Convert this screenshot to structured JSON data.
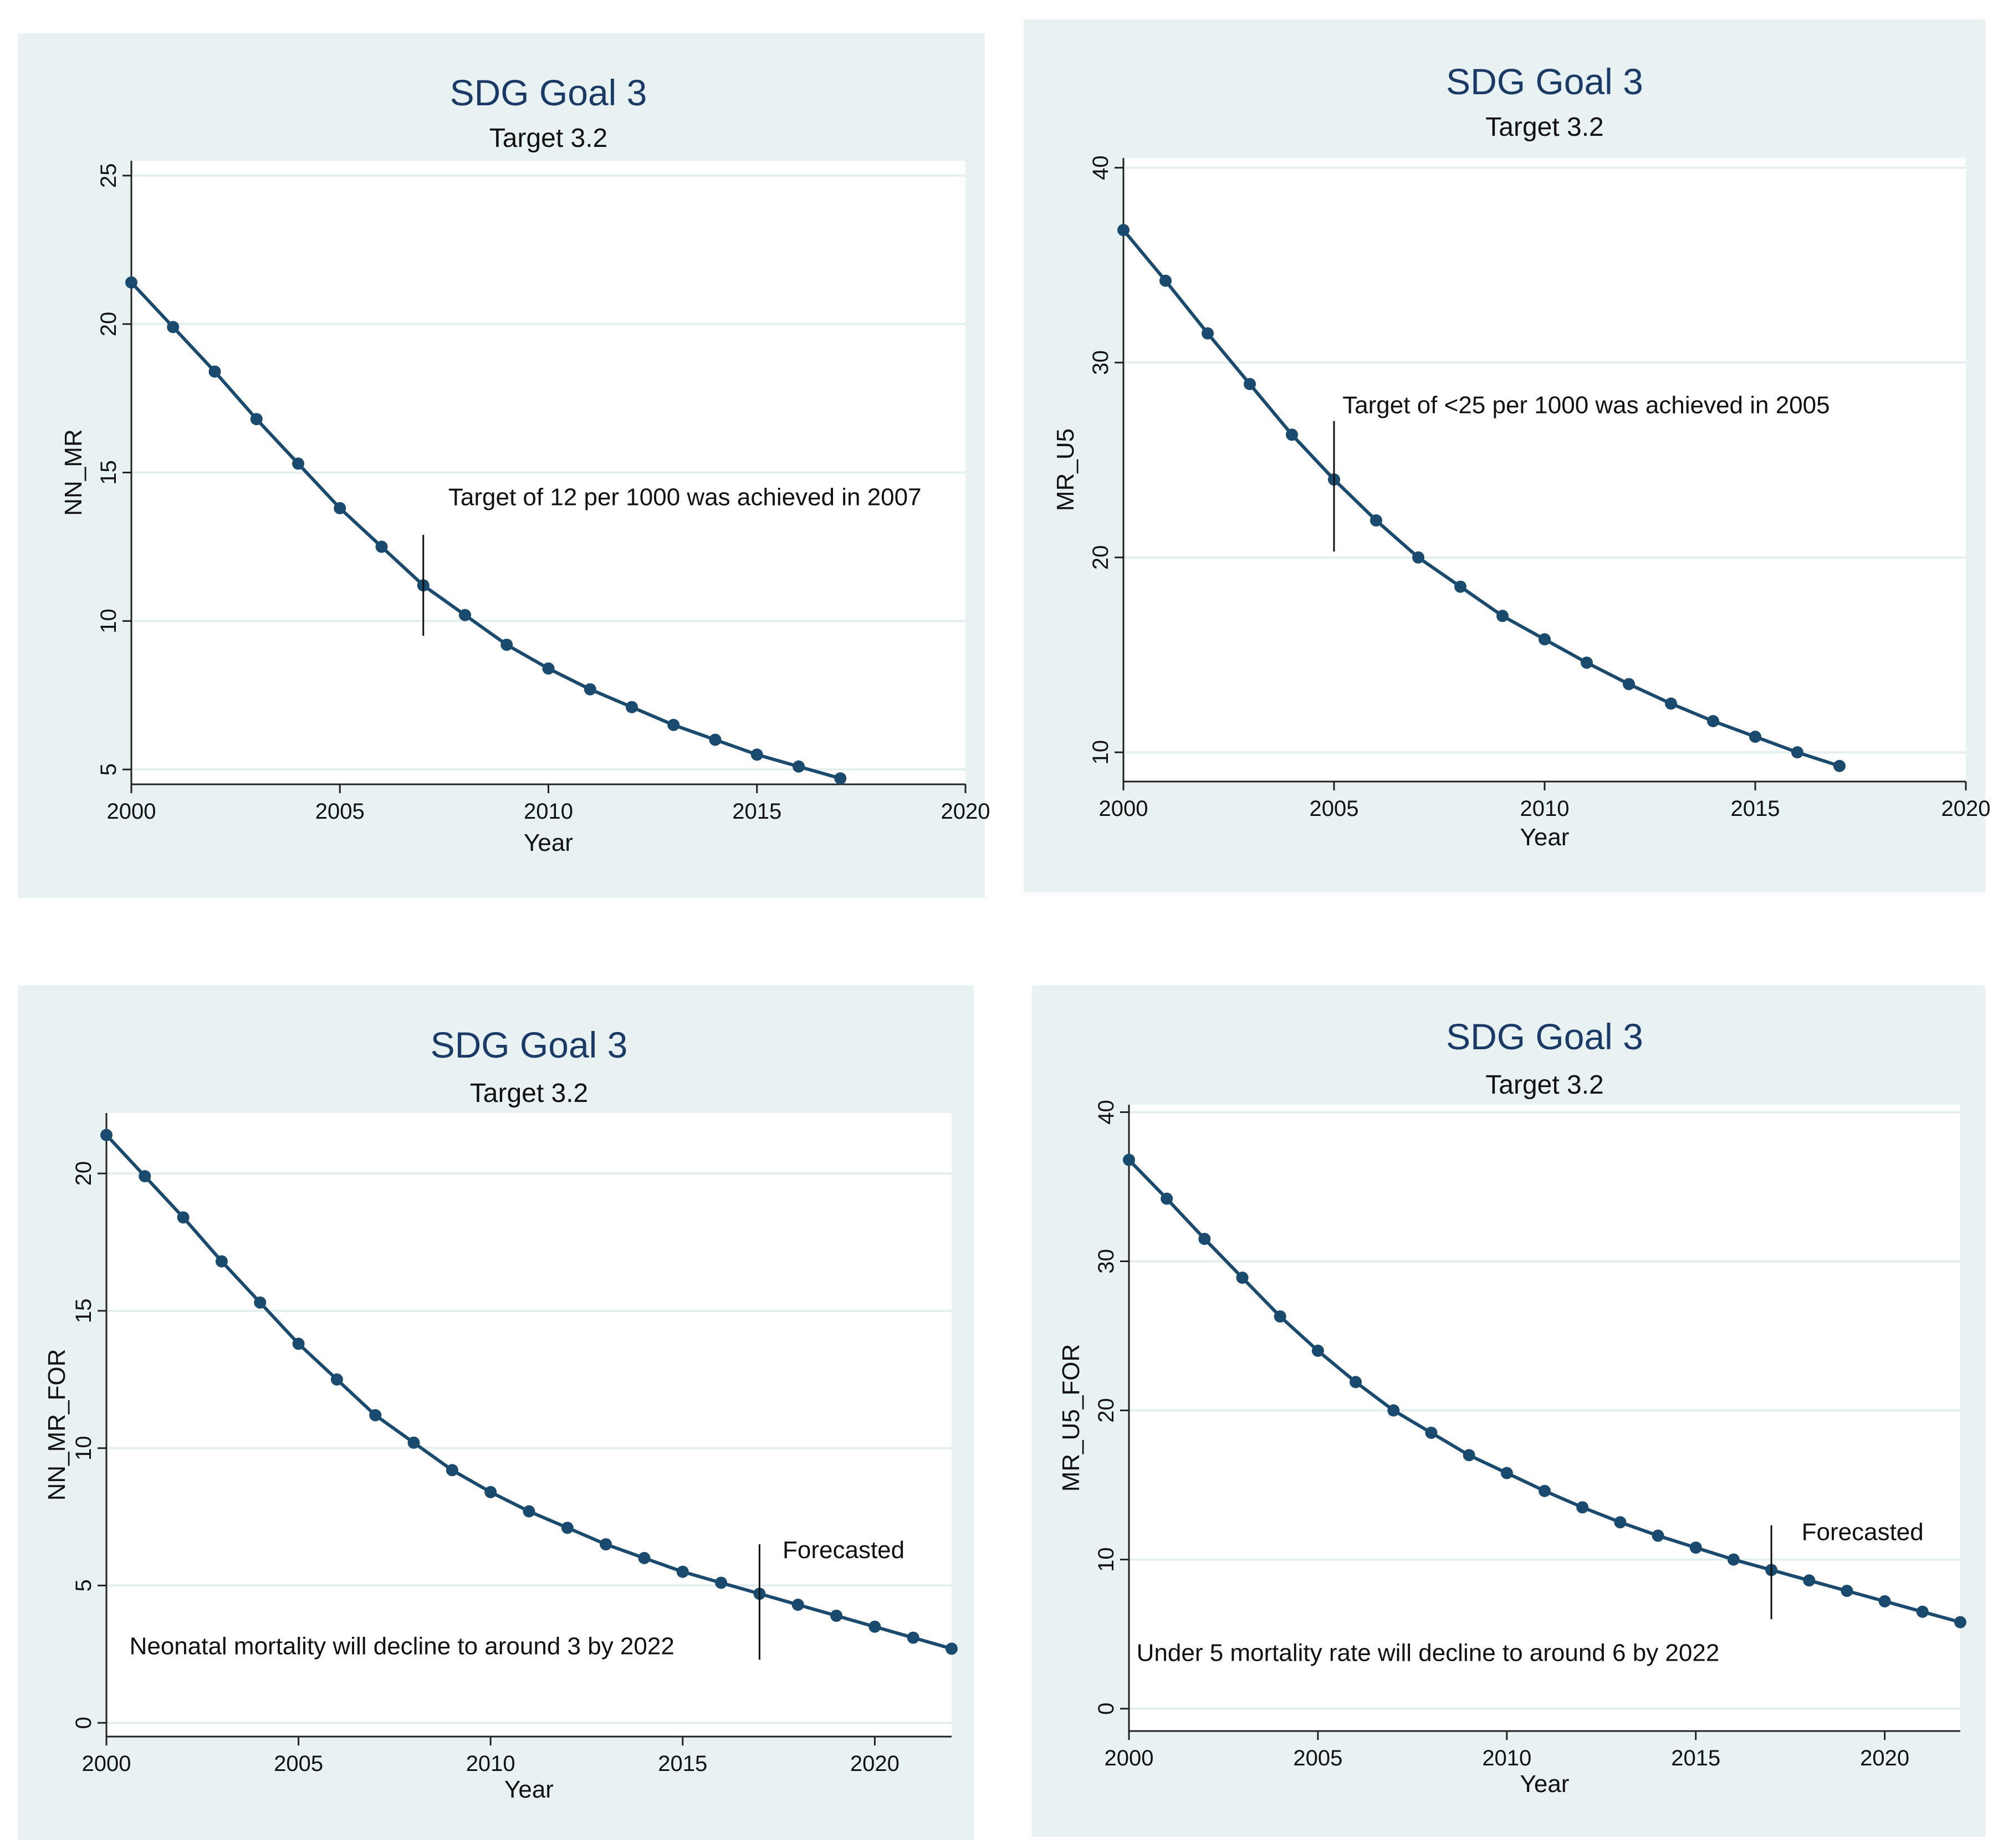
{
  "chart_data": [
    {
      "type": "line",
      "title": "SDG Goal 3",
      "subtitle": "Target 3.2",
      "xlabel": "Year",
      "ylabel": "NN_MR",
      "xlim": [
        2000,
        2020
      ],
      "ylim": [
        4.5,
        25.5
      ],
      "xticks": [
        2000,
        2005,
        2010,
        2015,
        2020
      ],
      "yticks": [
        5,
        10,
        15,
        20,
        25
      ],
      "grid": true,
      "x": [
        2000,
        2001,
        2002,
        2003,
        2004,
        2005,
        2006,
        2007,
        2008,
        2009,
        2010,
        2011,
        2012,
        2013,
        2014,
        2015,
        2016,
        2017
      ],
      "series": [
        {
          "values": [
            21.4,
            19.9,
            18.4,
            16.8,
            15.3,
            13.8,
            12.5,
            11.2,
            10.2,
            9.2,
            8.4,
            7.7,
            7.1,
            6.5,
            6.0,
            5.5,
            5.1,
            4.7
          ]
        }
      ],
      "vline": {
        "x": 2007,
        "y1": 9.5,
        "y2": 12.9
      },
      "annotation": {
        "text": "Target of 12 per 1000 was achieved in 2007",
        "x": 2007.6,
        "y": 13.9
      }
    },
    {
      "type": "line",
      "title": "SDG Goal 3",
      "subtitle": "Target 3.2",
      "xlabel": "Year",
      "ylabel": "MR_U5",
      "xlim": [
        2000,
        2020
      ],
      "ylim": [
        8.5,
        40.5
      ],
      "xticks": [
        2000,
        2005,
        2010,
        2015,
        2020
      ],
      "yticks": [
        10,
        20,
        30,
        40
      ],
      "grid": true,
      "x": [
        2000,
        2001,
        2002,
        2003,
        2004,
        2005,
        2006,
        2007,
        2008,
        2009,
        2010,
        2011,
        2012,
        2013,
        2014,
        2015,
        2016,
        2017
      ],
      "series": [
        {
          "values": [
            36.8,
            34.2,
            31.5,
            28.9,
            26.3,
            24.0,
            21.9,
            20.0,
            18.5,
            17.0,
            15.8,
            14.6,
            13.5,
            12.5,
            11.6,
            10.8,
            10.0,
            9.3
          ]
        }
      ],
      "vline": {
        "x": 2005,
        "y1": 20.3,
        "y2": 27.0
      },
      "annotation": {
        "text": "Target of <25 per 1000 was achieved in 2005",
        "x": 2005.2,
        "y": 27.4
      }
    },
    {
      "type": "line",
      "title": "SDG Goal 3",
      "subtitle": "Target 3.2",
      "xlabel": "Year",
      "ylabel": "NN_MR_FOR",
      "xlim": [
        2000,
        2022
      ],
      "ylim": [
        -0.5,
        22.2
      ],
      "xticks": [
        2000,
        2005,
        2010,
        2015,
        2020
      ],
      "yticks": [
        0,
        5,
        10,
        15,
        20
      ],
      "grid": true,
      "x": [
        2000,
        2001,
        2002,
        2003,
        2004,
        2005,
        2006,
        2007,
        2008,
        2009,
        2010,
        2011,
        2012,
        2013,
        2014,
        2015,
        2016,
        2017,
        2018,
        2019,
        2020,
        2021,
        2022
      ],
      "series": [
        {
          "values": [
            21.4,
            19.9,
            18.4,
            16.8,
            15.3,
            13.8,
            12.5,
            11.2,
            10.2,
            9.2,
            8.4,
            7.7,
            7.1,
            6.5,
            6.0,
            5.5,
            5.1,
            4.7,
            4.3,
            3.9,
            3.5,
            3.1,
            2.7
          ]
        }
      ],
      "vline": {
        "x": 2017,
        "y1": 2.3,
        "y2": 6.5
      },
      "annotations": [
        {
          "text": "Forecasted",
          "x": 2017.6,
          "y": 6.0
        },
        {
          "text": "Neonatal mortality will decline to around 3 by 2022",
          "x": 2000.6,
          "y": 2.5
        }
      ]
    },
    {
      "type": "line",
      "title": "SDG Goal 3",
      "subtitle": "Target 3.2",
      "xlabel": "Year",
      "ylabel": "MR_U5_FOR",
      "xlim": [
        2000,
        2022
      ],
      "ylim": [
        -1.5,
        40.5
      ],
      "xticks": [
        2000,
        2005,
        2010,
        2015,
        2020
      ],
      "yticks": [
        0,
        10,
        20,
        30,
        40
      ],
      "grid": true,
      "x": [
        2000,
        2001,
        2002,
        2003,
        2004,
        2005,
        2006,
        2007,
        2008,
        2009,
        2010,
        2011,
        2012,
        2013,
        2014,
        2015,
        2016,
        2017,
        2018,
        2019,
        2020,
        2021,
        2022
      ],
      "series": [
        {
          "values": [
            36.8,
            34.2,
            31.5,
            28.9,
            26.3,
            24.0,
            21.9,
            20.0,
            18.5,
            17.0,
            15.8,
            14.6,
            13.5,
            12.5,
            11.6,
            10.8,
            10.0,
            9.3,
            8.6,
            7.9,
            7.2,
            6.5,
            5.8
          ]
        }
      ],
      "vline": {
        "x": 2017,
        "y1": 6.0,
        "y2": 12.3
      },
      "annotations": [
        {
          "text": "Forecasted",
          "x": 2017.8,
          "y": 11.3
        },
        {
          "text": "Under 5 mortality rate will decline to around 6 by 2022",
          "x": 2000.2,
          "y": 3.2
        }
      ]
    }
  ]
}
